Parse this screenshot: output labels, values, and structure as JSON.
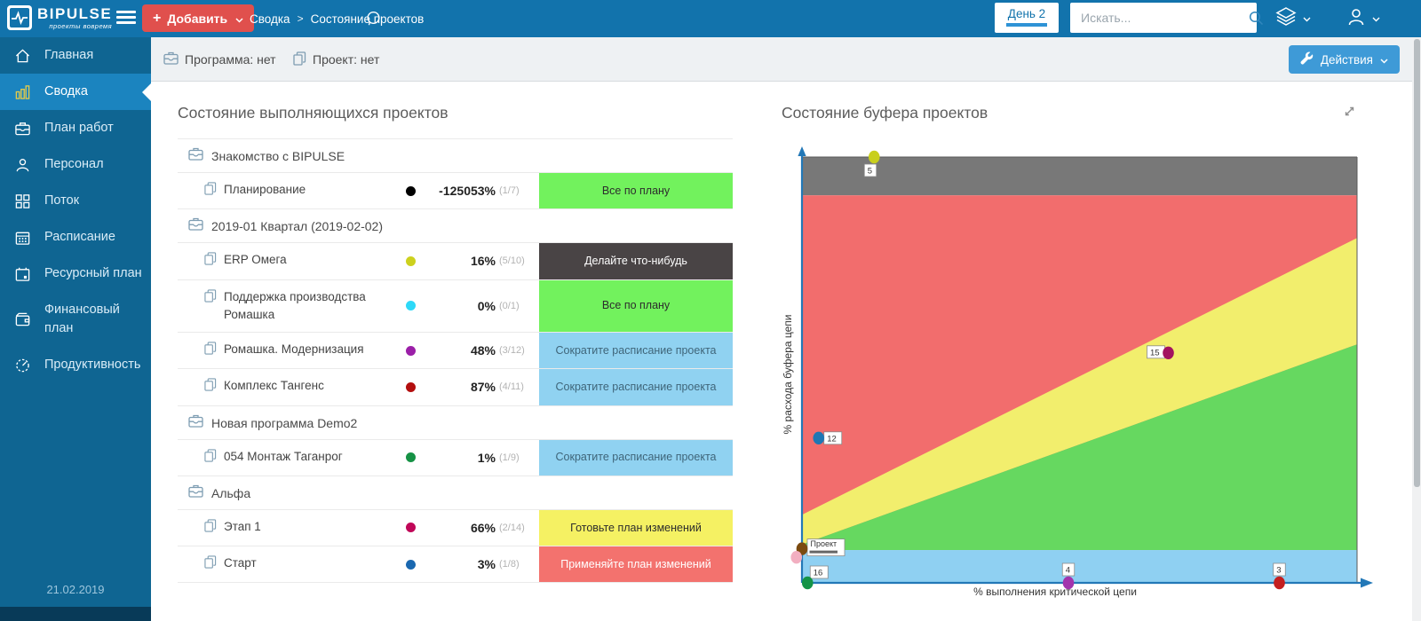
{
  "header": {
    "brand": {
      "name": "BIPULSE",
      "tagline": "проекты вовремя"
    },
    "add_button": {
      "label": "Добавить"
    },
    "breadcrumb": [
      "Сводка",
      "Состояние проектов"
    ],
    "day_tab": "День 2",
    "search": {
      "placeholder": "Искать..."
    }
  },
  "sidebar": {
    "items": [
      {
        "label": "Главная",
        "icon": "home",
        "active": false
      },
      {
        "label": "Сводка",
        "icon": "chart-bars",
        "active": true
      },
      {
        "label": "План работ",
        "icon": "briefcase",
        "active": false
      },
      {
        "label": "Персонал",
        "icon": "person",
        "active": false
      },
      {
        "label": "Поток",
        "icon": "grid",
        "active": false
      },
      {
        "label": "Расписание",
        "icon": "calendar",
        "active": false
      },
      {
        "label": "Ресурсный план",
        "icon": "calendar-alt",
        "active": false
      },
      {
        "label": "Финансовый план",
        "icon": "wallet",
        "active": false
      },
      {
        "label": "Продуктивность",
        "icon": "gauge",
        "active": false
      }
    ],
    "date": "21.02.2019"
  },
  "filterbar": {
    "program": "Программа: нет",
    "project": "Проект: нет",
    "actions_button": "Действия"
  },
  "projects_panel": {
    "title": "Состояние выполняющихся проектов",
    "badge_styles": {
      "green": {
        "bg": "#72f25d",
        "fg": "#2d2d2d"
      },
      "dark": {
        "bg": "#494445",
        "fg": "#ffffff"
      },
      "blue": {
        "bg": "#90d2f1",
        "fg": "#3f6579"
      },
      "yellow": {
        "bg": "#f5f163",
        "fg": "#2d2d2d"
      },
      "red": {
        "bg": "#f3726e",
        "fg": "#ffffff"
      }
    },
    "rows": [
      {
        "type": "group",
        "label": "Знакомство с BIPULSE"
      },
      {
        "type": "project",
        "name": "Планирование",
        "dot": "#000000",
        "percent": "-125053%",
        "count": "(1/7)",
        "badge": "Все по плану",
        "badge_type": "green"
      },
      {
        "type": "group",
        "label": "2019-01 Квартал (2019-02-02)"
      },
      {
        "type": "project",
        "name": "ERP Омега",
        "dot": "#cdd11e",
        "percent": "16%",
        "count": "(5/10)",
        "badge": "Делайте что-нибудь",
        "badge_type": "dark"
      },
      {
        "type": "project",
        "name": "Поддержка производства Ромашка",
        "dot": "#2ed9f8",
        "percent": "0%",
        "count": "(0/1)",
        "badge": "Все по плану",
        "badge_type": "green"
      },
      {
        "type": "project",
        "name": "Ромашка. Модернизация",
        "dot": "#9b1fa8",
        "percent": "48%",
        "count": "(3/12)",
        "badge": "Сократите расписание проекта",
        "badge_type": "blue"
      },
      {
        "type": "project",
        "name": "Комплекс Тангенс",
        "dot": "#b30f0f",
        "percent": "87%",
        "count": "(4/11)",
        "badge": "Сократите расписание проекта",
        "badge_type": "blue"
      },
      {
        "type": "group",
        "label": "Новая программа Demo2"
      },
      {
        "type": "project",
        "name": "054 Монтаж Таганрог",
        "dot": "#169245",
        "percent": "1%",
        "count": "(1/9)",
        "badge": "Сократите расписание проекта",
        "badge_type": "blue"
      },
      {
        "type": "group",
        "label": "Альфа"
      },
      {
        "type": "project",
        "name": "Этап 1",
        "dot": "#c00758",
        "percent": "66%",
        "count": "(2/14)",
        "badge": "Готовьте план изменений",
        "badge_type": "yellow"
      },
      {
        "type": "project",
        "name": "Старт",
        "dot": "#1a68b0",
        "percent": "3%",
        "count": "(1/8)",
        "badge": "Применяйте план изменений",
        "badge_type": "red"
      }
    ]
  },
  "buffer_panel": {
    "title": "Состояние буфера проектов"
  },
  "chart_data": {
    "type": "scatter",
    "title": "Состояние буфера проектов",
    "xlabel": "% выполнения критической цепи",
    "ylabel": "% расхода буфера цепи",
    "xlim": [
      0,
      100
    ],
    "ylim": [
      0,
      100
    ],
    "axis_color": "#2378b7",
    "zones": {
      "gray_top_band": {
        "from_y": 91,
        "to_y": 100,
        "color": "#787878"
      },
      "red": {
        "color": "#f26d6d"
      },
      "yellow_band": {
        "upper_left_y": 16,
        "upper_right_y": 81,
        "lower_left_y": 9,
        "lower_right_y": 56,
        "color": "#f2ee6d"
      },
      "green": {
        "color": "#66d860"
      },
      "blue_bottom_band": {
        "from_y": 0,
        "to_y": 7.7,
        "color": "#8fd0f2"
      }
    },
    "points": [
      {
        "label": "5",
        "x": 13,
        "y": 100,
        "color": "#c9cf1d",
        "label_pos": "below-left"
      },
      {
        "label": "15",
        "x": 66,
        "y": 54,
        "color": "#a31260",
        "label_pos": "left"
      },
      {
        "label": "12",
        "x": 3,
        "y": 34,
        "color": "#1f77b4",
        "label_pos": "right"
      },
      {
        "label": "Проект",
        "x": 0,
        "y": 8,
        "color": "#7b4a10",
        "label_pos": "right-struck"
      },
      {
        "label": "",
        "x": -1,
        "y": 6,
        "color": "#f2afc1",
        "label_pos": "none"
      },
      {
        "label": "16",
        "x": 1,
        "y": 0,
        "color": "#159447",
        "label_pos": "above-right"
      },
      {
        "label": "4",
        "x": 48,
        "y": 0,
        "color": "#a234ad",
        "label_pos": "above"
      },
      {
        "label": "3",
        "x": 86,
        "y": 0,
        "color": "#c41f1f",
        "label_pos": "above"
      }
    ]
  }
}
